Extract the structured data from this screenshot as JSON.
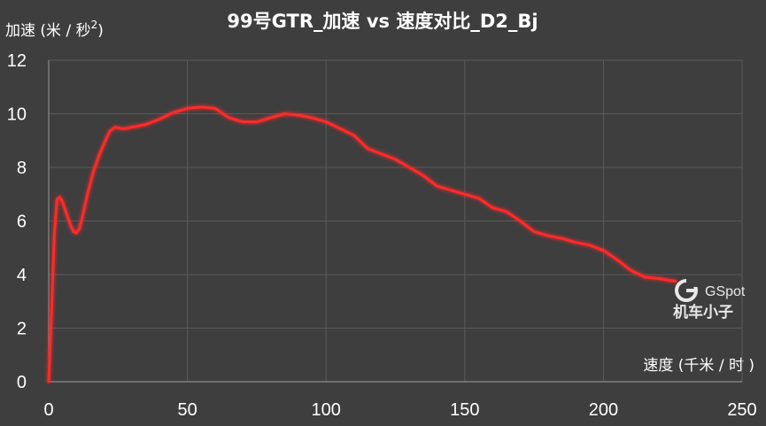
{
  "chart_data": {
    "type": "line",
    "title": "99号GTR_加速 vs 速度对比_D2_Bj",
    "xlabel": "速度 (千米 / 时 )",
    "ylabel_main": "加速 (米 / 秒",
    "ylabel_sup": "2",
    "ylabel_close": ")",
    "xlim": [
      0,
      250
    ],
    "ylim": [
      0,
      12
    ],
    "xticks": [
      0,
      50,
      100,
      150,
      200,
      250
    ],
    "yticks": [
      0,
      2,
      4,
      6,
      8,
      10,
      12
    ],
    "grid": true,
    "line_color": "#ff2a2a",
    "series": [
      {
        "x": [
          0,
          1,
          2,
          3,
          4,
          5,
          6,
          7,
          8,
          9,
          10,
          11,
          12,
          14,
          16,
          18,
          20,
          22,
          24,
          26,
          28,
          30,
          35,
          40,
          45,
          50,
          55,
          60,
          65,
          70,
          75,
          80,
          85,
          90,
          95,
          100,
          105,
          110,
          115,
          120,
          125,
          130,
          135,
          140,
          145,
          150,
          155,
          160,
          165,
          170,
          175,
          180,
          185,
          190,
          195,
          200,
          205,
          210,
          215,
          220,
          226
        ],
        "y": [
          0,
          2.5,
          5.5,
          6.8,
          6.9,
          6.7,
          6.4,
          6.1,
          5.8,
          5.6,
          5.55,
          5.7,
          6.1,
          7.0,
          7.8,
          8.4,
          8.9,
          9.35,
          9.5,
          9.45,
          9.45,
          9.5,
          9.6,
          9.8,
          10.05,
          10.2,
          10.25,
          10.2,
          9.85,
          9.7,
          9.7,
          9.85,
          10.0,
          9.95,
          9.85,
          9.7,
          9.45,
          9.2,
          8.7,
          8.5,
          8.3,
          8.0,
          7.7,
          7.3,
          7.15,
          7.0,
          6.85,
          6.5,
          6.35,
          6.0,
          5.6,
          5.45,
          5.35,
          5.2,
          5.1,
          4.9,
          4.55,
          4.15,
          3.9,
          3.85,
          3.75
        ]
      }
    ]
  },
  "watermark": {
    "brand": "GSpot",
    "cn": "机车小子"
  }
}
